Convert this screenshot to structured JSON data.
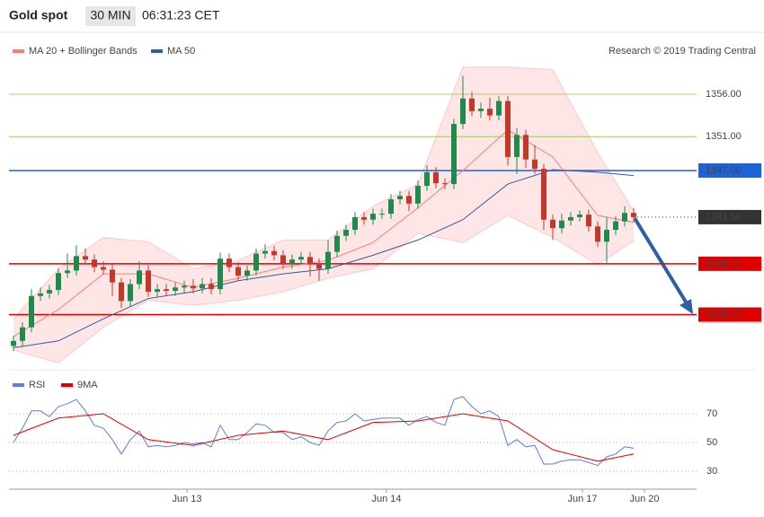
{
  "header": {
    "title": "Gold spot",
    "interval": "30 MIN",
    "time": "06:31:23 CET",
    "credit": "Research © 2019 Trading Central"
  },
  "chart_data": [
    {
      "type": "candlestick",
      "xlim": [
        -0.5,
        76
      ],
      "ylim": [
        1323.7,
        1363.2
      ],
      "up_color": "#1e8a4c",
      "down_color": "#c0392b",
      "x": [
        0,
        1,
        2,
        3,
        4,
        5,
        6,
        7,
        8,
        9,
        10,
        11,
        12,
        13,
        14,
        15,
        16,
        17,
        18,
        19,
        20,
        21,
        22,
        23,
        24,
        25,
        26,
        27,
        28,
        29,
        30,
        31,
        32,
        33,
        34,
        35,
        36,
        37,
        38,
        39,
        40,
        41,
        42,
        43,
        44,
        45,
        46,
        47,
        48,
        49,
        50,
        51,
        52,
        53,
        54,
        55,
        56,
        57,
        58,
        59,
        60,
        61,
        62,
        63,
        64,
        65,
        66,
        67,
        68,
        69
      ],
      "open": [
        1326.3,
        1326.9,
        1328.5,
        1332.2,
        1332.5,
        1332.9,
        1334.9,
        1335.2,
        1336.9,
        1336.5,
        1335.6,
        1335.3,
        1333.8,
        1331.6,
        1333.6,
        1335.2,
        1332.7,
        1333.0,
        1332.8,
        1333.2,
        1333.4,
        1333.1,
        1333.6,
        1333.0,
        1336.6,
        1335.6,
        1334.6,
        1335.2,
        1337.2,
        1337.5,
        1337.0,
        1336.0,
        1336.5,
        1336.8,
        1336.0,
        1335.4,
        1337.4,
        1339.3,
        1340.0,
        1341.5,
        1341.2,
        1341.9,
        1341.9,
        1343.6,
        1344.0,
        1343.1,
        1345.2,
        1346.8,
        1345.5,
        1345.4,
        1352.5,
        1355.5,
        1354.0,
        1354.3,
        1353.5,
        1355.2,
        1348.6,
        1351.2,
        1348.3,
        1347.2,
        1341.2,
        1340.2,
        1341.1,
        1341.5,
        1341.8,
        1340.4,
        1338.6,
        1340.0,
        1341.0,
        1342.0
      ],
      "high": [
        1327.5,
        1329.1,
        1333.0,
        1333.2,
        1333.5,
        1335.5,
        1337.2,
        1338.2,
        1337.8,
        1337.1,
        1336.3,
        1336.0,
        1334.3,
        1334.2,
        1336.3,
        1335.8,
        1333.6,
        1333.6,
        1333.8,
        1334.0,
        1334.2,
        1334.3,
        1334.3,
        1337.3,
        1337.2,
        1336.2,
        1335.8,
        1337.8,
        1338.3,
        1338.1,
        1337.6,
        1337.1,
        1337.4,
        1337.4,
        1336.6,
        1338.8,
        1339.9,
        1340.6,
        1342.1,
        1342.1,
        1342.5,
        1342.5,
        1344.2,
        1344.6,
        1344.6,
        1345.8,
        1347.6,
        1347.4,
        1346.1,
        1353.1,
        1358.2,
        1356.3,
        1355.0,
        1355.6,
        1355.8,
        1355.8,
        1352.0,
        1351.8,
        1350.0,
        1347.8,
        1341.8,
        1341.9,
        1342.1,
        1342.3,
        1342.4,
        1341.0,
        1341.5,
        1341.6,
        1342.8,
        1342.6
      ],
      "low": [
        1325.7,
        1326.3,
        1327.9,
        1331.6,
        1331.9,
        1332.3,
        1334.3,
        1334.6,
        1335.9,
        1335.0,
        1334.7,
        1332.2,
        1330.8,
        1331.0,
        1333.0,
        1332.1,
        1332.1,
        1332.2,
        1332.2,
        1332.6,
        1332.5,
        1332.5,
        1332.4,
        1332.4,
        1335.0,
        1334.0,
        1334.0,
        1334.6,
        1336.6,
        1336.4,
        1335.4,
        1335.4,
        1335.9,
        1334.5,
        1334.0,
        1334.8,
        1336.8,
        1338.7,
        1339.4,
        1340.6,
        1340.6,
        1341.3,
        1341.3,
        1343.0,
        1342.2,
        1342.5,
        1344.6,
        1344.9,
        1344.8,
        1344.8,
        1351.9,
        1353.4,
        1353.2,
        1352.9,
        1352.9,
        1347.6,
        1346.6,
        1347.3,
        1346.6,
        1340.0,
        1338.8,
        1339.6,
        1340.5,
        1341.0,
        1339.8,
        1338.0,
        1336.1,
        1339.4,
        1340.4,
        1340.9
      ],
      "close": [
        1326.9,
        1328.5,
        1332.2,
        1332.5,
        1332.9,
        1334.9,
        1335.2,
        1336.9,
        1336.5,
        1335.6,
        1335.3,
        1333.8,
        1331.6,
        1333.6,
        1335.2,
        1332.7,
        1333.0,
        1332.8,
        1333.2,
        1333.4,
        1333.1,
        1333.6,
        1333.0,
        1336.6,
        1335.6,
        1334.6,
        1335.2,
        1337.2,
        1337.5,
        1337.0,
        1336.0,
        1336.5,
        1336.8,
        1336.0,
        1335.4,
        1337.4,
        1339.3,
        1340.0,
        1341.5,
        1341.2,
        1341.9,
        1341.9,
        1343.6,
        1344.0,
        1343.1,
        1345.2,
        1346.8,
        1345.5,
        1345.4,
        1352.5,
        1355.5,
        1354.0,
        1354.3,
        1353.5,
        1355.2,
        1348.6,
        1351.2,
        1348.3,
        1347.2,
        1341.2,
        1340.2,
        1341.1,
        1341.5,
        1341.8,
        1340.4,
        1338.6,
        1340.0,
        1341.0,
        1342.0,
        1341.5
      ],
      "series": [
        {
          "name": "MA 20 + Bollinger Bands",
          "color": "#f08080",
          "x": [
            0,
            5,
            10,
            15,
            20,
            25,
            30,
            35,
            40,
            45,
            50,
            55,
            60,
            65,
            69
          ],
          "values": [
            1327.4,
            1330.6,
            1334.8,
            1334.8,
            1333.2,
            1334.3,
            1335.6,
            1336.4,
            1338.5,
            1342.6,
            1347.0,
            1351.8,
            1348.6,
            1341.7,
            1340.9
          ],
          "upper": [
            1329.5,
            1335.4,
            1339.1,
            1338.6,
            1335.4,
            1336.4,
            1338.8,
            1338.8,
            1342.8,
            1345.4,
            1359.2,
            1359.2,
            1358.9,
            1349.1,
            1342.2
          ],
          "lower": [
            1325.8,
            1324.3,
            1328.5,
            1331.7,
            1331.1,
            1331.7,
            1332.7,
            1334.3,
            1335.4,
            1339.6,
            1338.5,
            1341.7,
            1339.1,
            1335.9,
            1338.7
          ],
          "band_color": "#ffd6d6"
        },
        {
          "name": "MA 50",
          "color": "#2f5d9e",
          "x": [
            0,
            5,
            10,
            15,
            20,
            25,
            30,
            35,
            40,
            45,
            50,
            55,
            60,
            65,
            69
          ],
          "values": [
            1326.1,
            1326.9,
            1329.5,
            1331.9,
            1332.7,
            1334.0,
            1334.8,
            1335.4,
            1337.0,
            1338.8,
            1341.2,
            1345.4,
            1347.1,
            1346.8,
            1346.4
          ]
        }
      ],
      "levels": [
        {
          "value": 1356,
          "label": "1356.00",
          "color": "#8bc34a",
          "filled": false
        },
        {
          "value": 1351,
          "label": "1351.00",
          "color": "#8bc34a",
          "filled": false
        },
        {
          "value": 1347,
          "label": "1347.00",
          "color": "#1e63d6",
          "filled": true
        },
        {
          "value": 1341.5,
          "label": "1341.50",
          "color": "#333333",
          "filled": true,
          "dotted": true
        },
        {
          "value": 1336,
          "label": "1336.00",
          "color": "#e00000",
          "filled": true
        },
        {
          "value": 1330,
          "label": "1330.00",
          "color": "#e00000",
          "filled": true
        }
      ]
    },
    {
      "type": "line",
      "xlim": [
        -0.5,
        76
      ],
      "ylim": [
        17.5,
        98.75
      ],
      "yticks": [
        30,
        50,
        70
      ],
      "grid": true,
      "xticks": [
        {
          "value": 19.3,
          "label": "Jun 13"
        },
        {
          "value": 41.5,
          "label": "Jun 14"
        },
        {
          "value": 63.3,
          "label": "Jun 17"
        },
        {
          "value": 70.2,
          "label": "Jun 20"
        }
      ],
      "series": [
        {
          "name": "RSI",
          "color": "#5b7fe0",
          "x": [
            0,
            1,
            2,
            3,
            4,
            5,
            6,
            7,
            8,
            9,
            10,
            11,
            12,
            13,
            14,
            15,
            16,
            17,
            18,
            19,
            20,
            21,
            22,
            23,
            24,
            25,
            26,
            27,
            28,
            29,
            30,
            31,
            32,
            33,
            34,
            35,
            36,
            37,
            38,
            39,
            40,
            41,
            42,
            43,
            44,
            45,
            46,
            47,
            48,
            49,
            50,
            51,
            52,
            53,
            54,
            55,
            56,
            57,
            58,
            59,
            60,
            61,
            62,
            63,
            64,
            65,
            66,
            67,
            68,
            69
          ],
          "values": [
            50,
            60,
            72,
            72,
            68,
            75,
            77,
            80,
            72,
            62,
            60,
            52,
            42,
            52,
            58,
            47,
            48,
            47,
            48,
            50,
            49,
            50,
            47,
            62,
            52,
            52,
            57,
            63,
            62,
            57,
            57,
            52,
            54,
            50,
            48,
            58,
            64,
            65,
            70,
            65,
            66,
            67,
            67,
            67,
            62,
            66,
            68,
            64,
            62,
            80,
            82,
            75,
            70,
            72,
            68,
            48,
            52,
            47,
            48,
            35,
            35,
            37,
            38,
            38,
            36,
            34,
            40,
            42,
            47,
            46
          ]
        },
        {
          "name": "9MA",
          "color": "#e00000",
          "x": [
            0,
            5,
            10,
            15,
            20,
            25,
            30,
            35,
            40,
            45,
            50,
            55,
            60,
            65,
            69
          ],
          "values": [
            55,
            67,
            70,
            52,
            48,
            55,
            58,
            52,
            64,
            65,
            70,
            65,
            45,
            37,
            42
          ]
        }
      ]
    }
  ]
}
